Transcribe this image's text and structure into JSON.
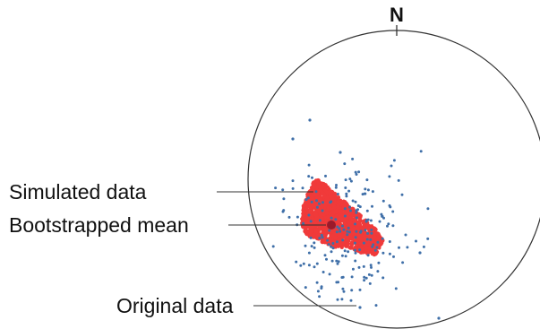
{
  "diagram": {
    "north_label": "N",
    "labels": {
      "simulated": "Simulated data",
      "bootstrapped": "Bootstrapped mean",
      "original": "Original data"
    },
    "colors": {
      "background": "#ffffff",
      "net_outline": "#333333",
      "simulated_points": "#f03a3a",
      "original_points": "#3f6fa8",
      "mean_point": "#9b1a2a",
      "leader_lines": "#333333"
    }
  }
}
